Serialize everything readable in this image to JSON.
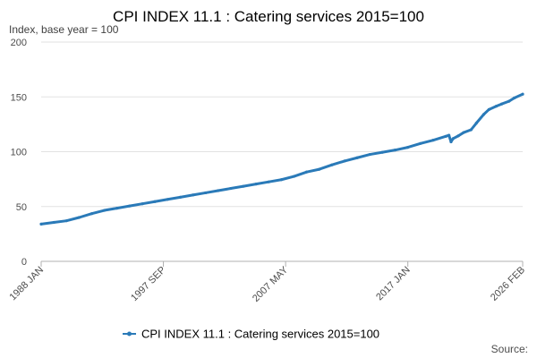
{
  "chart_data": {
    "type": "line",
    "title": "CPI INDEX 11.1 : Catering services 2015=100",
    "subtitle": "Index, base year = 100",
    "source_label": "Source:",
    "ylim": [
      0,
      200
    ],
    "yticks": [
      0,
      50,
      100,
      150,
      200
    ],
    "xlim": [
      "1988-01",
      "2026-02"
    ],
    "xticks": [
      "1988 JAN",
      "1997 SEP",
      "2007 MAY",
      "2017 JAN",
      "2026 FEB"
    ],
    "grid": "horizontal",
    "legend_position": "bottom",
    "line_color": "#2a7ab8",
    "series": [
      {
        "name": "CPI INDEX 11.1 : Catering services 2015=100",
        "points": [
          [
            "1988-01",
            34.0
          ],
          [
            "1989-01",
            35.5
          ],
          [
            "1990-01",
            37.0
          ],
          [
            "1991-01",
            40.0
          ],
          [
            "1992-01",
            43.5
          ],
          [
            "1993-01",
            46.5
          ],
          [
            "1994-01",
            48.5
          ],
          [
            "1995-01",
            50.5
          ],
          [
            "1996-01",
            52.5
          ],
          [
            "1997-01",
            54.5
          ],
          [
            "1998-01",
            56.5
          ],
          [
            "1999-01",
            58.5
          ],
          [
            "2000-01",
            60.5
          ],
          [
            "2001-01",
            62.5
          ],
          [
            "2002-01",
            64.5
          ],
          [
            "2003-01",
            66.5
          ],
          [
            "2004-01",
            68.5
          ],
          [
            "2005-01",
            70.5
          ],
          [
            "2006-01",
            72.5
          ],
          [
            "2007-01",
            74.5
          ],
          [
            "2008-01",
            77.5
          ],
          [
            "2009-01",
            81.5
          ],
          [
            "2010-01",
            84.0
          ],
          [
            "2011-01",
            88.0
          ],
          [
            "2012-01",
            91.5
          ],
          [
            "2013-01",
            94.5
          ],
          [
            "2014-01",
            97.5
          ],
          [
            "2015-01",
            99.5
          ],
          [
            "2016-01",
            101.5
          ],
          [
            "2017-01",
            104.0
          ],
          [
            "2018-01",
            107.5
          ],
          [
            "2019-01",
            110.5
          ],
          [
            "2020-01",
            114.0
          ],
          [
            "2020-04",
            115.0
          ],
          [
            "2020-06",
            109.0
          ],
          [
            "2020-08",
            112.0
          ],
          [
            "2021-01",
            114.5
          ],
          [
            "2021-06",
            117.5
          ],
          [
            "2022-01",
            120.0
          ],
          [
            "2022-06",
            126.0
          ],
          [
            "2023-01",
            134.0
          ],
          [
            "2023-06",
            138.5
          ],
          [
            "2024-01",
            141.5
          ],
          [
            "2024-06",
            143.5
          ],
          [
            "2025-01",
            146.0
          ],
          [
            "2025-06",
            149.0
          ],
          [
            "2026-02",
            152.5
          ]
        ]
      }
    ]
  }
}
